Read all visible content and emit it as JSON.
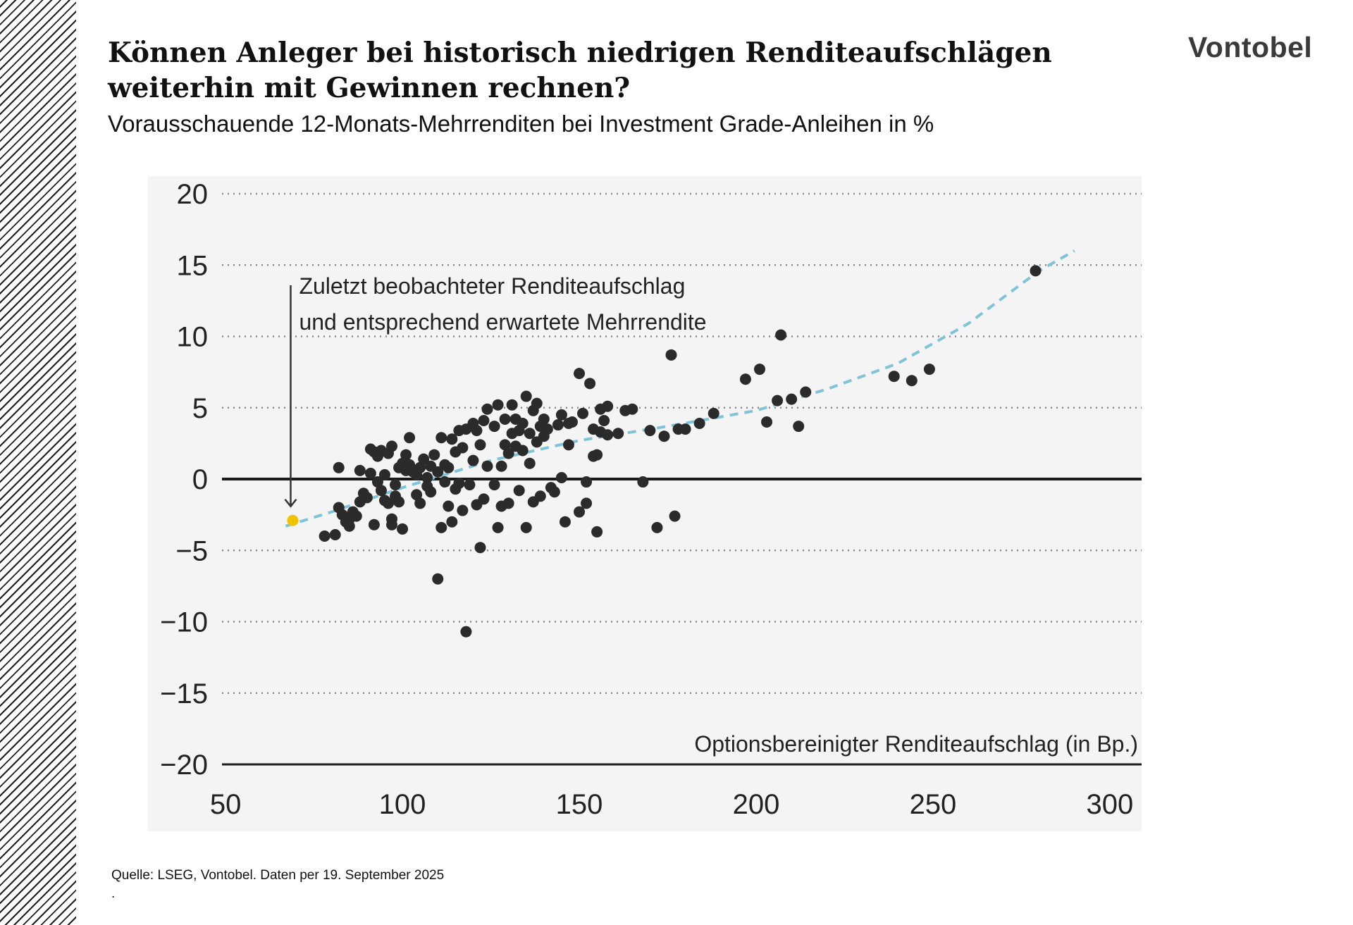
{
  "header": {
    "title": "Können Anleger bei historisch niedrigen Renditeaufschlägen weiterhin mit Gewinnen rechnen?",
    "subtitle": "Vorausschauende 12-Monats-Mehrrenditen bei Investment Grade-Anleihen in %",
    "logo": "Vontobel"
  },
  "footer": {
    "source": "Quelle: LSEG, Vontobel. Daten per 19. September 2025",
    "trailing": "."
  },
  "colors": {
    "points": "#2b2b2b",
    "latest": "#f2c200",
    "trend": "#7fc3d9",
    "grid": "#8a8a8a",
    "plot_bg": "#f4f4f4"
  },
  "chart_data": {
    "type": "scatter",
    "xlabel": "Optionsbereinigter Renditeaufschlag (in Bp.)",
    "ylabel": "",
    "xlim": [
      45,
      305
    ],
    "ylim": [
      -20,
      20
    ],
    "x_ticks": [
      50,
      100,
      150,
      200,
      250,
      300
    ],
    "y_ticks": [
      20,
      15,
      10,
      5,
      0,
      -5,
      -10,
      -15,
      -20
    ],
    "y_tick_labels": [
      "20",
      "15",
      "10",
      "5",
      "0",
      "−5",
      "−10",
      "−15",
      "−20"
    ],
    "grid": "horizontal dotted",
    "annotation": {
      "lines": [
        "Zuletzt beobachteter Renditeaufschlag",
        "und entsprechend erwartete Mehrrendite"
      ],
      "point": [
        69,
        -2.9
      ]
    },
    "latest_point": {
      "x": 69,
      "y": -2.9
    },
    "trend_line": {
      "style": "dashed",
      "points": [
        [
          67,
          -3.3
        ],
        [
          80,
          -2.3
        ],
        [
          100,
          -0.6
        ],
        [
          125,
          1.3
        ],
        [
          150,
          2.7
        ],
        [
          175,
          3.7
        ],
        [
          200,
          4.8
        ],
        [
          220,
          6.3
        ],
        [
          240,
          8.1
        ],
        [
          260,
          10.9
        ],
        [
          280,
          14.6
        ],
        [
          290,
          16.0
        ]
      ]
    },
    "series": [
      {
        "points": [
          [
            78,
            -4.0
          ],
          [
            81,
            -3.9
          ],
          [
            82,
            0.8
          ],
          [
            82,
            -2.0
          ],
          [
            83,
            -2.5
          ],
          [
            84,
            -3.0
          ],
          [
            85,
            -2.8
          ],
          [
            85,
            -3.3
          ],
          [
            86,
            -2.3
          ],
          [
            87,
            -2.6
          ],
          [
            88,
            0.6
          ],
          [
            88,
            -1.6
          ],
          [
            89,
            -1.0
          ],
          [
            90,
            -1.3
          ],
          [
            91,
            0.4
          ],
          [
            91,
            2.1
          ],
          [
            92,
            -3.2
          ],
          [
            92,
            1.9
          ],
          [
            93,
            -0.2
          ],
          [
            93,
            1.6
          ],
          [
            94,
            -0.8
          ],
          [
            94,
            2.0
          ],
          [
            95,
            -1.5
          ],
          [
            95,
            0.3
          ],
          [
            96,
            -1.7
          ],
          [
            96,
            1.8
          ],
          [
            97,
            -2.8
          ],
          [
            97,
            -3.2
          ],
          [
            97,
            2.3
          ],
          [
            98,
            -1.2
          ],
          [
            98,
            -0.4
          ],
          [
            99,
            -1.6
          ],
          [
            99,
            0.8
          ],
          [
            100,
            -3.5
          ],
          [
            100,
            1.1
          ],
          [
            101,
            0.6
          ],
          [
            101,
            1.7
          ],
          [
            102,
            2.9
          ],
          [
            102,
            1.0
          ],
          [
            103,
            0.5
          ],
          [
            104,
            -1.1
          ],
          [
            104,
            0.3
          ],
          [
            105,
            0.8
          ],
          [
            105,
            -1.7
          ],
          [
            106,
            1.4
          ],
          [
            107,
            0.1
          ],
          [
            107,
            -0.5
          ],
          [
            108,
            0.9
          ],
          [
            108,
            -0.9
          ],
          [
            109,
            1.7
          ],
          [
            110,
            0.5
          ],
          [
            110,
            -7.0
          ],
          [
            111,
            -3.4
          ],
          [
            111,
            2.9
          ],
          [
            112,
            -0.2
          ],
          [
            112,
            1.0
          ],
          [
            113,
            0.8
          ],
          [
            113,
            -1.9
          ],
          [
            114,
            -3.0
          ],
          [
            114,
            2.8
          ],
          [
            115,
            -0.7
          ],
          [
            115,
            1.9
          ],
          [
            116,
            -0.3
          ],
          [
            116,
            3.4
          ],
          [
            117,
            -2.2
          ],
          [
            117,
            2.2
          ],
          [
            118,
            -10.7
          ],
          [
            118,
            3.5
          ],
          [
            119,
            -0.4
          ],
          [
            120,
            1.3
          ],
          [
            120,
            3.9
          ],
          [
            121,
            3.4
          ],
          [
            121,
            -1.8
          ],
          [
            122,
            -4.8
          ],
          [
            122,
            2.4
          ],
          [
            123,
            -1.4
          ],
          [
            123,
            4.1
          ],
          [
            124,
            0.9
          ],
          [
            124,
            4.9
          ],
          [
            126,
            3.7
          ],
          [
            126,
            -0.4
          ],
          [
            127,
            -3.4
          ],
          [
            127,
            5.2
          ],
          [
            128,
            -1.9
          ],
          [
            128,
            0.9
          ],
          [
            129,
            2.4
          ],
          [
            129,
            4.2
          ],
          [
            130,
            1.8
          ],
          [
            130,
            -1.7
          ],
          [
            131,
            3.2
          ],
          [
            131,
            5.2
          ],
          [
            132,
            4.2
          ],
          [
            132,
            2.3
          ],
          [
            133,
            3.4
          ],
          [
            133,
            -0.8
          ],
          [
            134,
            2.0
          ],
          [
            134,
            3.9
          ],
          [
            135,
            5.8
          ],
          [
            135,
            -3.4
          ],
          [
            136,
            1.1
          ],
          [
            136,
            3.2
          ],
          [
            137,
            4.8
          ],
          [
            137,
            -1.6
          ],
          [
            138,
            2.6
          ],
          [
            138,
            5.3
          ],
          [
            139,
            3.7
          ],
          [
            139,
            -1.2
          ],
          [
            140,
            4.2
          ],
          [
            140,
            3.0
          ],
          [
            141,
            3.5
          ],
          [
            142,
            -0.6
          ],
          [
            143,
            -0.9
          ],
          [
            144,
            3.8
          ],
          [
            145,
            4.5
          ],
          [
            145,
            0.1
          ],
          [
            146,
            -3.0
          ],
          [
            147,
            3.9
          ],
          [
            147,
            2.4
          ],
          [
            148,
            4.0
          ],
          [
            150,
            7.4
          ],
          [
            150,
            -2.3
          ],
          [
            151,
            4.6
          ],
          [
            152,
            -1.7
          ],
          [
            152,
            -0.2
          ],
          [
            153,
            6.7
          ],
          [
            154,
            1.6
          ],
          [
            154,
            3.5
          ],
          [
            155,
            1.7
          ],
          [
            155,
            -3.7
          ],
          [
            156,
            3.3
          ],
          [
            156,
            4.9
          ],
          [
            157,
            4.1
          ],
          [
            158,
            3.1
          ],
          [
            158,
            5.1
          ],
          [
            161,
            3.2
          ],
          [
            163,
            4.8
          ],
          [
            165,
            4.9
          ],
          [
            168,
            -0.2
          ],
          [
            170,
            3.4
          ],
          [
            172,
            -3.4
          ],
          [
            174,
            3.0
          ],
          [
            176,
            8.7
          ],
          [
            177,
            -2.6
          ],
          [
            178,
            3.5
          ],
          [
            180,
            3.5
          ],
          [
            184,
            3.9
          ],
          [
            188,
            4.6
          ],
          [
            197,
            7.0
          ],
          [
            201,
            7.7
          ],
          [
            203,
            4.0
          ],
          [
            206,
            5.5
          ],
          [
            207,
            10.1
          ],
          [
            210,
            5.6
          ],
          [
            212,
            3.7
          ],
          [
            214,
            6.1
          ],
          [
            239,
            7.2
          ],
          [
            244,
            6.9
          ],
          [
            249,
            7.7
          ],
          [
            279,
            14.6
          ]
        ]
      }
    ]
  }
}
